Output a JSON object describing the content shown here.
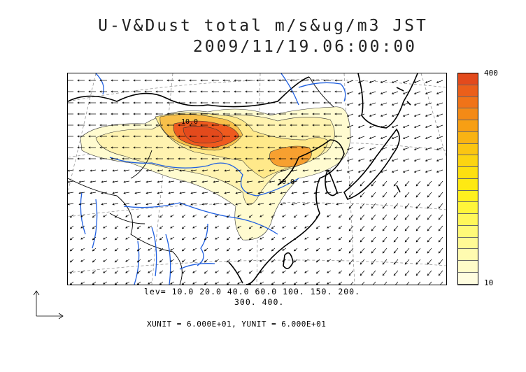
{
  "title": {
    "line1": "U-V&Dust total m/s&ug/m3 JST",
    "line2": "2009/11/19.06:00:00"
  },
  "colorbar": {
    "max_label": "400",
    "min_label": "10",
    "colors": [
      "#e34a1c",
      "#eb5f1a",
      "#f07318",
      "#f48a16",
      "#f79f14",
      "#f9b313",
      "#fbc512",
      "#fcd411",
      "#fde010",
      "#fee913",
      "#fff01e",
      "#fff53a",
      "#fff75a",
      "#fff978",
      "#fffa95",
      "#fffbb0",
      "#fffcc8",
      "#fffde0"
    ]
  },
  "contour_levels": {
    "line1": "lev= 10.0 20.0 40.0 60.0 100. 150. 200.",
    "line2": "300. 400."
  },
  "units": "XUNIT = 6.000E+01, YUNIT = 6.000E+01",
  "map_labels": {
    "contour_a": "10.0",
    "contour_b": "10.0"
  },
  "colors": {
    "coast": "#000000",
    "rivers": "#1f5fe0",
    "grid": "#777777",
    "dust_light": "#fffbd0",
    "dust_mid": "#ffe98a",
    "dust_high": "#f7b53a",
    "dust_max": "#ef5a1e"
  }
}
